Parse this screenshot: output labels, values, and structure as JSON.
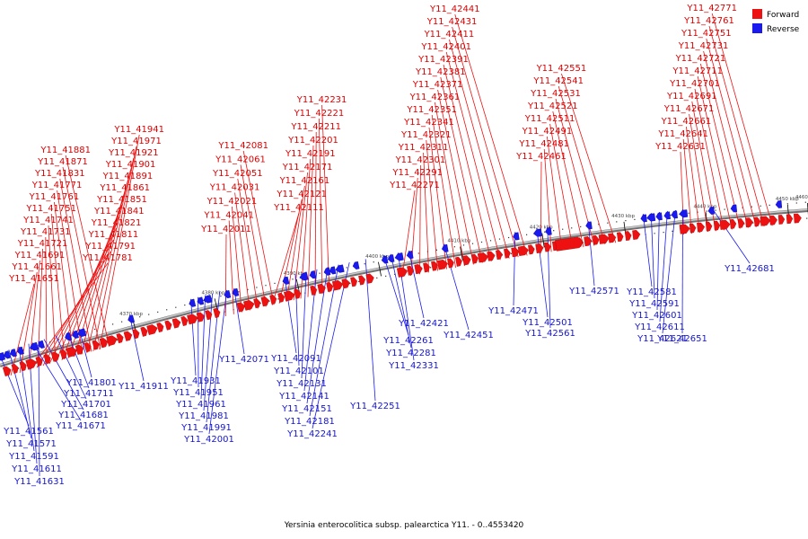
{
  "caption": "Yersinia enterocolitica subsp. palearctica Y11. - 0..4553420",
  "colors": {
    "forward": "#ee1111",
    "reverse": "#1a1aee",
    "axis": "#8a8a8a"
  },
  "legend": [
    {
      "label": "Forward",
      "strand": "forward"
    },
    {
      "label": "Reverse",
      "strand": "reverse"
    }
  ],
  "chart_data": {
    "type": "genome-map",
    "units": "kbp",
    "ticks": [
      "4370 kbp",
      "4380 kbp",
      "4390 kbp",
      "4400 kbp",
      "4410 kbp",
      "4420 kbp",
      "4430 kbp",
      "4440 kbp",
      "4450 kbp",
      "4460 kbp"
    ],
    "tick_values": [
      4370,
      4380,
      4390,
      4400,
      4410,
      4420,
      4430,
      4440,
      4450,
      4460
    ],
    "forward_labels": [
      "Y11_41651",
      "Y11_41661",
      "Y11_41691",
      "Y11_41721",
      "Y11_41731",
      "Y11_41741",
      "Y11_41751",
      "Y11_41761",
      "Y11_41771",
      "Y11_41831",
      "Y11_41871",
      "Y11_41881",
      "Y11_41781",
      "Y11_41791",
      "Y11_41811",
      "Y11_41821",
      "Y11_41841",
      "Y11_41851",
      "Y11_41861",
      "Y11_41891",
      "Y11_41901",
      "Y11_41921",
      "Y11_41971",
      "Y11_41941",
      "Y11_42011",
      "Y11_42041",
      "Y11_42021",
      "Y11_42031",
      "Y11_42051",
      "Y11_42061",
      "Y11_42081",
      "Y11_42111",
      "Y11_42121",
      "Y11_42161",
      "Y11_42171",
      "Y11_42191",
      "Y11_42201",
      "Y11_42211",
      "Y11_42221",
      "Y11_42231",
      "Y11_42271",
      "Y11_42291",
      "Y11_42301",
      "Y11_42311",
      "Y11_42321",
      "Y11_42341",
      "Y11_42351",
      "Y11_42361",
      "Y11_42371",
      "Y11_42381",
      "Y11_42391",
      "Y11_42401",
      "Y11_42411",
      "Y11_42431",
      "Y11_42441",
      "Y11_42461",
      "Y11_42481",
      "Y11_42491",
      "Y11_42511",
      "Y11_42521",
      "Y11_42531",
      "Y11_42541",
      "Y11_42551",
      "Y11_42631",
      "Y11_42641",
      "Y11_42661",
      "Y11_42671",
      "Y11_42691",
      "Y11_42701",
      "Y11_42711",
      "Y11_42721",
      "Y11_42731",
      "Y11_42751",
      "Y11_42761",
      "Y11_42771"
    ],
    "reverse_labels": [
      "Y11_41561",
      "Y11_41571",
      "Y11_41591",
      "Y11_41611",
      "Y11_41631",
      "Y11_41671",
      "Y11_41681",
      "Y11_41701",
      "Y11_41711",
      "Y11_41801",
      "Y11_41911",
      "Y11_41931",
      "Y11_41951",
      "Y11_41961",
      "Y11_41981",
      "Y11_41991",
      "Y11_42001",
      "Y11_42071",
      "Y11_42091",
      "Y11_42101",
      "Y11_42131",
      "Y11_42141",
      "Y11_42151",
      "Y11_42181",
      "Y11_42241",
      "Y11_42251",
      "Y11_42261",
      "Y11_42281",
      "Y11_42331",
      "Y11_42421",
      "Y11_42451",
      "Y11_42471",
      "Y11_42501",
      "Y11_42561",
      "Y11_42571",
      "Y11_42581",
      "Y11_42591",
      "Y11_42601",
      "Y11_42611",
      "Y11_42621",
      "Y11_42651",
      "Y11_42681"
    ]
  }
}
